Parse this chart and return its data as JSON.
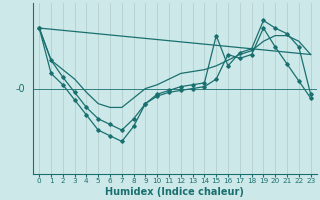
{
  "xlabel": "Humidex (Indice chaleur)",
  "background_color": "#cde8e8",
  "line_color": "#1a7070",
  "grid_color": "#b0c8c8",
  "xlim": [
    -0.5,
    23.5
  ],
  "ylim": [
    -4.5,
    4.5
  ],
  "xticks": [
    0,
    1,
    2,
    3,
    4,
    5,
    6,
    7,
    8,
    9,
    10,
    11,
    12,
    13,
    14,
    15,
    16,
    17,
    18,
    19,
    20,
    21,
    22,
    23
  ],
  "s1x": [
    0,
    1,
    2,
    3,
    4,
    5,
    6,
    7,
    8,
    9,
    10,
    11,
    12,
    13,
    14,
    15,
    16,
    17,
    18,
    19,
    20,
    21,
    22,
    23
  ],
  "s1y": [
    3.2,
    1.5,
    1.0,
    0.5,
    -0.2,
    -0.8,
    -1.0,
    -1.0,
    -0.5,
    0.0,
    0.2,
    0.5,
    0.8,
    0.9,
    1.0,
    1.2,
    1.5,
    1.8,
    2.0,
    2.5,
    2.8,
    2.8,
    2.5,
    1.8
  ],
  "s2x": [
    0,
    1,
    2,
    3,
    4,
    5,
    6,
    7,
    8,
    9,
    10,
    11,
    12,
    13,
    14,
    15,
    16,
    17,
    18,
    19,
    20,
    21,
    22,
    23
  ],
  "s2y": [
    3.2,
    1.5,
    0.6,
    -0.2,
    -1.0,
    -1.6,
    -1.9,
    -2.2,
    -1.6,
    -0.8,
    -0.4,
    -0.2,
    -0.1,
    0.0,
    0.1,
    0.5,
    1.8,
    1.6,
    1.8,
    3.2,
    2.2,
    1.3,
    0.4,
    -0.5
  ],
  "s3x": [
    0,
    1,
    2,
    3,
    4,
    5,
    6,
    7,
    8,
    9,
    10,
    11,
    12,
    13,
    14,
    15,
    16,
    17,
    18,
    19,
    20,
    21,
    22,
    23
  ],
  "s3y": [
    3.2,
    0.8,
    0.2,
    -0.6,
    -1.4,
    -2.2,
    -2.5,
    -2.8,
    -2.0,
    -0.8,
    -0.3,
    -0.1,
    0.1,
    0.2,
    0.3,
    2.8,
    1.2,
    1.9,
    2.1,
    3.6,
    3.2,
    2.9,
    2.2,
    -0.3
  ],
  "s4x": [
    0,
    23
  ],
  "s4y": [
    3.2,
    1.8
  ]
}
